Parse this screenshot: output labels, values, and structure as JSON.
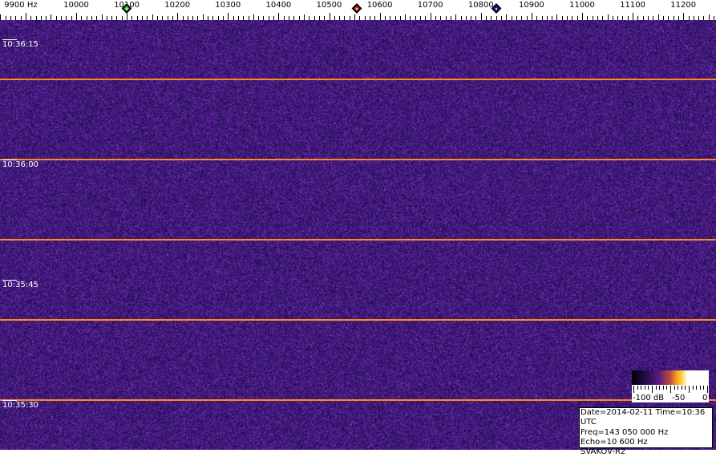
{
  "freq_axis": {
    "labels": [
      {
        "f": 9900,
        "text": "9900 Hz"
      },
      {
        "f": 10000,
        "text": "10000"
      },
      {
        "f": 10100,
        "text": "10100"
      },
      {
        "f": 10200,
        "text": "10200"
      },
      {
        "f": 10300,
        "text": "10300"
      },
      {
        "f": 10400,
        "text": "10400"
      },
      {
        "f": 10500,
        "text": "10500"
      },
      {
        "f": 10600,
        "text": "10600"
      },
      {
        "f": 10700,
        "text": "10700"
      },
      {
        "f": 10800,
        "text": "10800"
      },
      {
        "f": 10900,
        "text": "10900"
      },
      {
        "f": 11000,
        "text": "11000"
      },
      {
        "f": 11100,
        "text": "11100"
      },
      {
        "f": 11200,
        "text": "11200"
      }
    ],
    "markers": [
      {
        "name": "green-marker",
        "f": 10100,
        "color": "#2ecc40"
      },
      {
        "name": "red-marker",
        "f": 10555,
        "color": "#e02020"
      },
      {
        "name": "blue-marker",
        "f": 10830,
        "color": "#1020c0"
      }
    ]
  },
  "waterfall": {
    "background_color": "#3a1c78",
    "grid_line_color": "#ff8a1e",
    "time_labels": [
      "10:36:15",
      "10:36:00",
      "10:35:45",
      "10:35:30"
    ]
  },
  "colorbar": {
    "labels": [
      "-100 dB",
      "-50",
      "0"
    ]
  },
  "info": {
    "line1": "Date=2014-02-11 Time=10:36 UTC",
    "line2": "Freq=143 050 000 Hz",
    "line3": "Echo=10 600 Hz",
    "line4": "SVAKOV-R2"
  }
}
